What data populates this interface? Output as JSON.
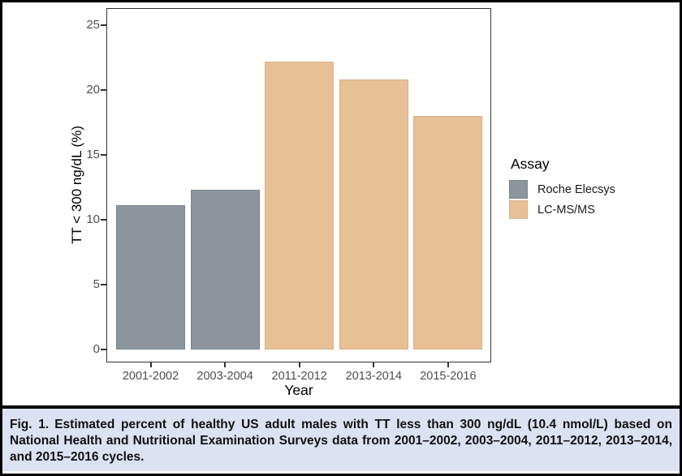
{
  "figure": {
    "caption": {
      "prefix": "Fig. 1.",
      "body": "Estimated percent of healthy US adult males with TT less than 300 ng/dL (10.4 nmol/L) based on National Health and Nutritional Examination Surveys data from 2001–2002, 2003–2004, 2011–2012, 2013–2014, and 2015–2016 cycles.",
      "background_color": "#dbe2f2"
    },
    "frame_border_color": "#000000"
  },
  "chart_data": {
    "type": "bar",
    "title": "",
    "xlabel": "Year",
    "ylabel": "TT < 300 ng/dL (%)",
    "ylim": [
      0,
      26.5
    ],
    "yticks": [
      0,
      5,
      10,
      15,
      20,
      25
    ],
    "grid": false,
    "categories": [
      "2001-2002",
      "2003-2004",
      "2011-2012",
      "2013-2014",
      "2015-2016"
    ],
    "bars": [
      {
        "category": "2001-2002",
        "series": "Roche Elecsys",
        "value": 11.1
      },
      {
        "category": "2003-2004",
        "series": "Roche Elecsys",
        "value": 12.3
      },
      {
        "category": "2011-2012",
        "series": "LC-MS/MS",
        "value": 22.2
      },
      {
        "category": "2013-2014",
        "series": "LC-MS/MS",
        "value": 20.8
      },
      {
        "category": "2015-2016",
        "series": "LC-MS/MS",
        "value": 18.0
      }
    ],
    "legend": {
      "title": "Assay",
      "position": "right",
      "items": [
        {
          "label": "Roche Elecsys",
          "color": "#8c959d",
          "border": "#7b858d"
        },
        {
          "label": "LC-MS/MS",
          "color": "#e7c096",
          "border": "#d9b088"
        }
      ]
    },
    "tick_text_color": "#4d4d4d"
  }
}
